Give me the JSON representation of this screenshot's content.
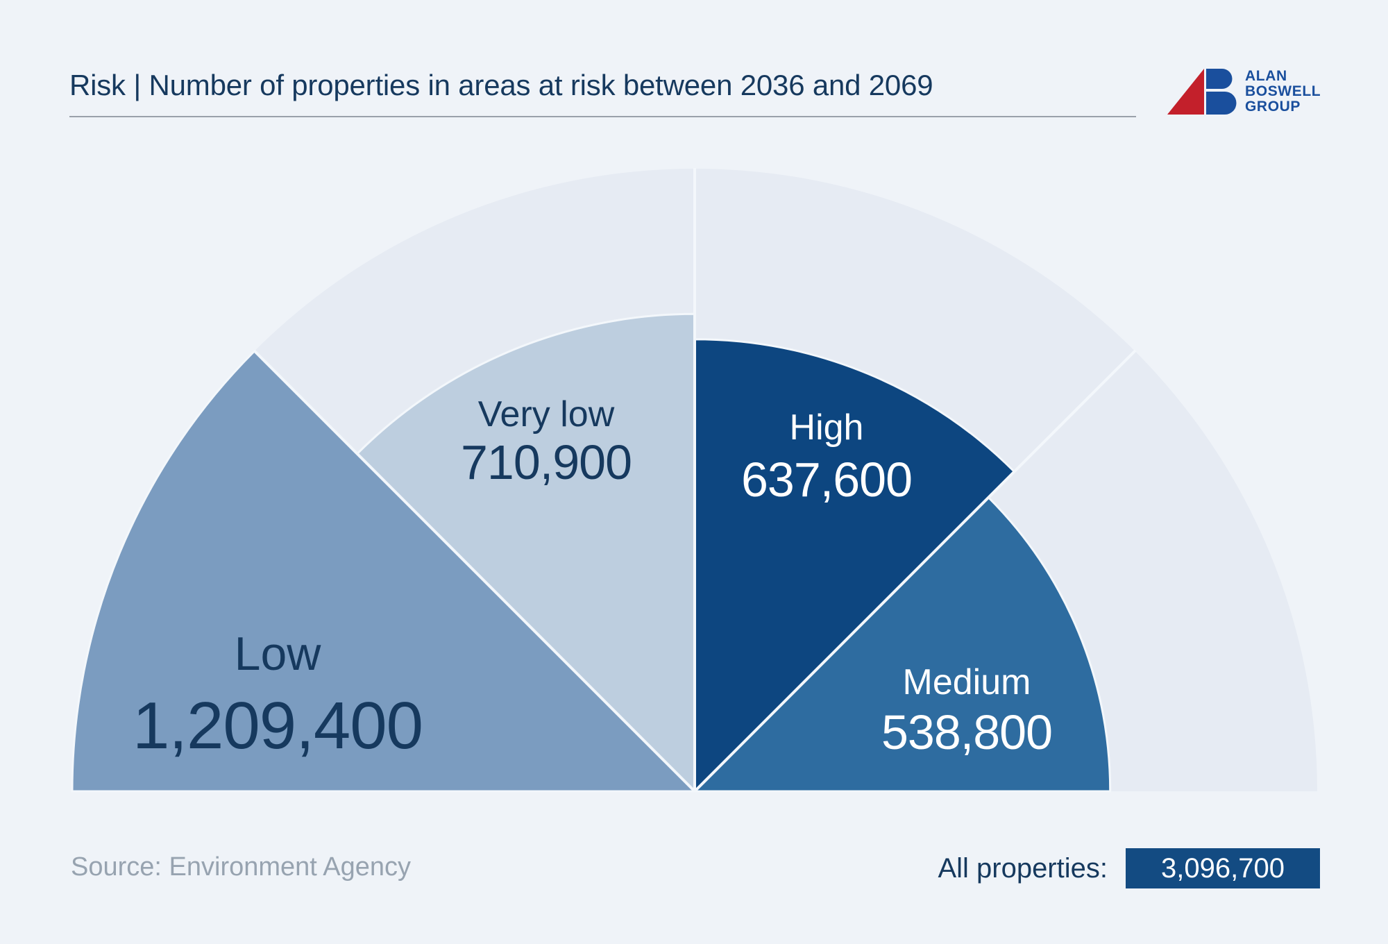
{
  "header": {
    "title": "Risk | Number of properties in areas at risk between 2036 and 2069",
    "logo": {
      "name_line1": "ALAN",
      "name_line2": "BOSWELL",
      "name_line3": "GROUP",
      "red": "#C3202B",
      "blue": "#1A4F9D"
    }
  },
  "chart_data": {
    "type": "pie",
    "subtype": "semicircle-gauge-fan",
    "title": "Risk | Number of properties in areas at risk between 2036 and 2069",
    "total": 3096700,
    "unit": "properties",
    "segments": [
      {
        "label": "Low",
        "value": 1209400,
        "value_display": "1,209,400",
        "color": "#7B9CC0",
        "text_color": "#16395E"
      },
      {
        "label": "Very low",
        "value": 710900,
        "value_display": "710,900",
        "color": "#BDCEDF",
        "text_color": "#16395E"
      },
      {
        "label": "High",
        "value": 637600,
        "value_display": "637,600",
        "color": "#0D4680",
        "text_color": "#FFFFFF"
      },
      {
        "label": "Medium",
        "value": 538800,
        "value_display": "538,800",
        "color": "#2E6CA0",
        "text_color": "#FFFFFF"
      }
    ],
    "layout_notes": "Semicircle split into four equal 45-degree sectors left to right; wedge radius proportional to sqrt(value); pale full-radius track behind each sector; thin light dividers on sector boundaries",
    "colors": {
      "track": "#E6EBF3",
      "background": "#EFF3F8",
      "divider": "#F3F7FB"
    }
  },
  "footer": {
    "source": "Source: Environment Agency",
    "all_properties_label": "All properties:",
    "all_properties_value": "3,096,700"
  }
}
